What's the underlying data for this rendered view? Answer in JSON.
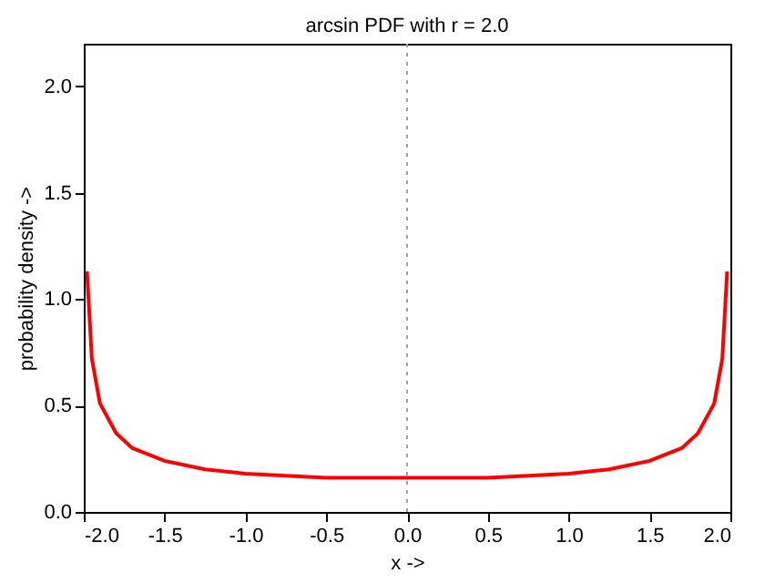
{
  "chart_data": {
    "type": "line",
    "title": "arcsin PDF with r = 2.0",
    "xlabel": "x ->",
    "ylabel": "probability density ->",
    "x": [
      -1.98,
      -1.95,
      -1.9,
      -1.8,
      -1.7,
      -1.6,
      -1.5,
      -1.25,
      -1.0,
      -0.75,
      -0.5,
      -0.25,
      0,
      0.25,
      0.5,
      0.75,
      1.0,
      1.25,
      1.5,
      1.6,
      1.7,
      1.8,
      1.9,
      1.95,
      1.98
    ],
    "series": [
      {
        "color": "#ff0000",
        "values": [
          1.13,
          0.72,
          0.51,
          0.37,
          0.3,
          0.27,
          0.24,
          0.2,
          0.18,
          0.17,
          0.16,
          0.16,
          0.16,
          0.16,
          0.16,
          0.17,
          0.18,
          0.2,
          0.24,
          0.27,
          0.3,
          0.37,
          0.51,
          0.72,
          1.13
        ]
      }
    ],
    "xlim": [
      -2,
      2
    ],
    "ylim": [
      0,
      2.2
    ],
    "xticks": [
      {
        "value": -2,
        "label": "-2.0"
      },
      {
        "value": -1.5,
        "label": "-1.5"
      },
      {
        "value": -1,
        "label": "-1.0"
      },
      {
        "value": -0.5,
        "label": "-0.5"
      },
      {
        "value": 0,
        "label": "0.0"
      },
      {
        "value": 0.5,
        "label": "0.5"
      },
      {
        "value": 1,
        "label": "1.0"
      },
      {
        "value": 1.5,
        "label": "1.5"
      },
      {
        "value": 2,
        "label": "2.0"
      }
    ],
    "yticks": [
      {
        "value": 0,
        "label": "0.0"
      },
      {
        "value": 0.5,
        "label": "0.5"
      },
      {
        "value": 1,
        "label": "1.0"
      },
      {
        "value": 1.5,
        "label": "1.5"
      },
      {
        "value": 2,
        "label": "2.0"
      }
    ],
    "ref_lines": [
      {
        "axis": "x",
        "value": 0,
        "color": "#a0a0a0",
        "line_style": "dotted"
      }
    ],
    "grid": false,
    "line_style": "solid"
  }
}
